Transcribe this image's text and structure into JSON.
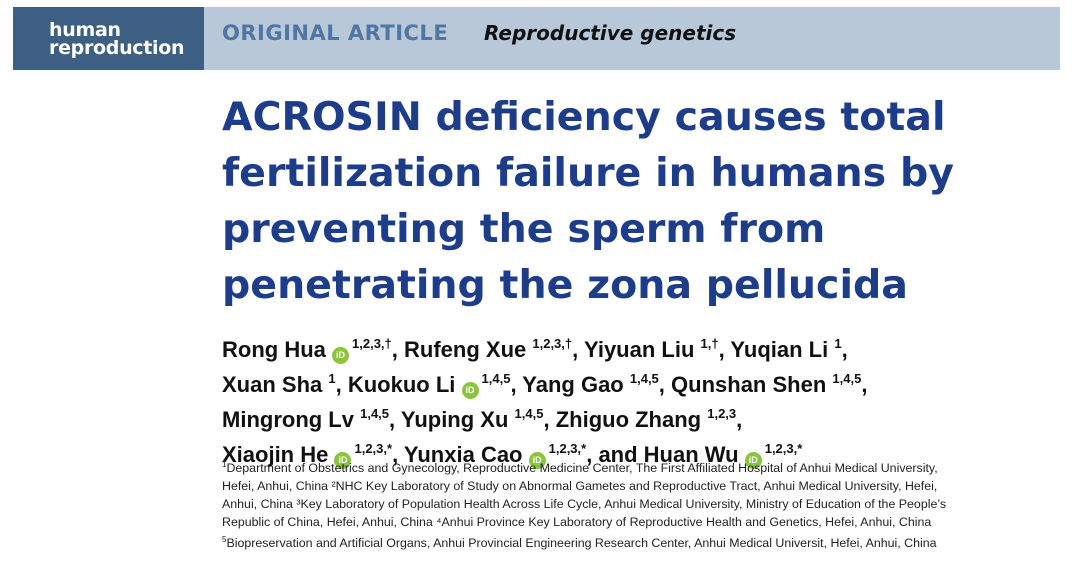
{
  "journal": {
    "logo_line1": "human",
    "logo_line2": "reproduction",
    "article_type": "ORIGINAL ARTICLE",
    "section": "Reproductive genetics"
  },
  "title_lines": [
    "ACROSIN deficiency causes total",
    "fertilization failure in humans by",
    "preventing the sperm from",
    "penetrating the zona pellucida"
  ],
  "authors": [
    {
      "name": "Rong Hua",
      "orcid": true,
      "aff": "1,2,3,†",
      "sep": ", "
    },
    {
      "name": "Rufeng Xue",
      "orcid": false,
      "aff": "1,2,3,†",
      "sep": ", "
    },
    {
      "name": "Yiyuan Liu",
      "orcid": false,
      "aff": "1,†",
      "sep": ", "
    },
    {
      "name": "Yuqian Li",
      "orcid": false,
      "aff": "1",
      "sep": ","
    },
    {
      "name": "Xuan Sha",
      "orcid": false,
      "aff": "1",
      "sep": ", "
    },
    {
      "name": "Kuokuo Li",
      "orcid": true,
      "aff": "1,4,5",
      "sep": ", "
    },
    {
      "name": "Yang Gao",
      "orcid": false,
      "aff": "1,4,5",
      "sep": ", "
    },
    {
      "name": "Qunshan Shen",
      "orcid": false,
      "aff": "1,4,5",
      "sep": ","
    },
    {
      "name": "Mingrong Lv",
      "orcid": false,
      "aff": "1,4,5",
      "sep": ", "
    },
    {
      "name": "Yuping Xu",
      "orcid": false,
      "aff": "1,4,5",
      "sep": ", "
    },
    {
      "name": "Zhiguo Zhang",
      "orcid": false,
      "aff": "1,2,3",
      "sep": ","
    },
    {
      "name": "Xiaojin He",
      "orcid": true,
      "aff": "1,2,3,*",
      "sep": ", "
    },
    {
      "name": "Yunxia Cao",
      "orcid": true,
      "aff": "1,2,3,*",
      "sep": ", and "
    },
    {
      "name": "Huan Wu",
      "orcid": true,
      "aff": "1,2,3,*",
      "sep": ""
    }
  ],
  "orcid_label": "iD",
  "affiliations_lines": [
    {
      "sup": "1",
      "text": "Department of Obstetrics and Gynecology, Reproductive Medicine Center, The First Affiliated Hospital of Anhui Medical University,"
    },
    {
      "sup": "",
      "text": "Hefei, Anhui, China ²NHC Key Laboratory of Study on Abnormal Gametes and Reproductive Tract, Anhui Medical University, Hefei,"
    },
    {
      "sup": "",
      "text": "Anhui, China ³Key Laboratory of Population Health Across Life Cycle, Anhui Medical University, Ministry of Education of the People’s"
    },
    {
      "sup": "",
      "text": "Republic of China, Hefei, Anhui, China ⁴Anhui Province Key Laboratory of Reproductive Health and Genetics, Hefei, Anhui, China"
    },
    {
      "sup": "5",
      "text": "Biopreservation and Artificial Organs, Anhui Provincial Engineering Research Center, Anhui Medical Universit, Hefei, Anhui, China"
    }
  ],
  "colors": {
    "banner": "#b8c8d9",
    "logo_bg": "#3d5f84",
    "article_type": "#4f77a2",
    "title": "#1d3c8a",
    "orcid": "#8bc43f"
  }
}
